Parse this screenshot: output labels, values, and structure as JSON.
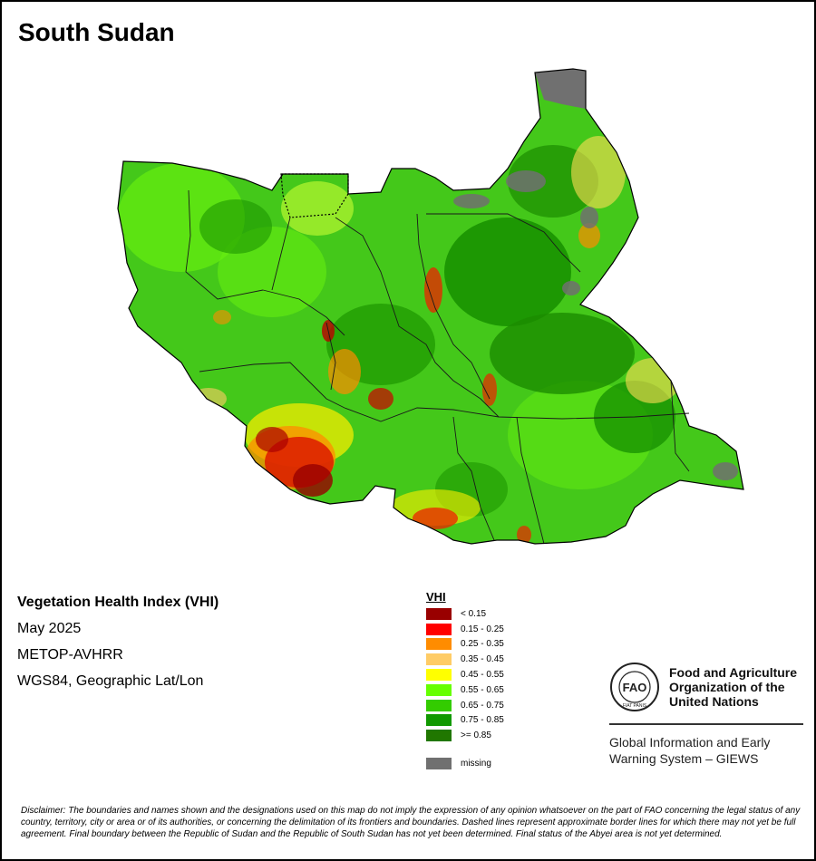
{
  "map": {
    "title": "South Sudan"
  },
  "info": {
    "index_title": "Vegetation Health Index (VHI)",
    "date": "May 2025",
    "sensor": "METOP-AVHRR",
    "projection": "WGS84, Geographic Lat/Lon"
  },
  "legend": {
    "title": "VHI",
    "classes": [
      {
        "label": "< 0.15",
        "color": "#990000"
      },
      {
        "label": "0.15 - 0.25",
        "color": "#ff0000"
      },
      {
        "label": "0.25 - 0.35",
        "color": "#ff8c00"
      },
      {
        "label": "0.35 - 0.45",
        "color": "#ffcc66"
      },
      {
        "label": "0.45 - 0.55",
        "color": "#ffff00"
      },
      {
        "label": "0.55 - 0.65",
        "color": "#66ff00"
      },
      {
        "label": "0.65 - 0.75",
        "color": "#33cc00"
      },
      {
        "label": "0.75 - 0.85",
        "color": "#119900"
      },
      {
        "label": ">= 0.85",
        "color": "#207700"
      }
    ],
    "missing": {
      "label": "missing",
      "color": "#707070"
    }
  },
  "fao": {
    "name_line1": "Food and Agriculture",
    "name_line2": "Organization of the",
    "name_line3": "United Nations",
    "logo_text": "FAO",
    "logo_ring_text": "FIAT PANIS",
    "giews_line1": "Global Information and Early",
    "giews_line2": "Warning System – GIEWS"
  },
  "disclaimer": "Disclaimer: The boundaries and names shown and the designations used on this map do not imply the expression of any opinion whatsoever on the part of FAO concerning the legal status of any country, territory, city or area or of its authorities, or concerning the delimitation of its frontiers and boundaries. Dashed lines represent approximate border lines for which there may not yet be full agreement.  Final boundary between the Republic of Sudan and the Republic of South Sudan has not yet been determined. Final status of the Abyei area is not yet determined."
}
